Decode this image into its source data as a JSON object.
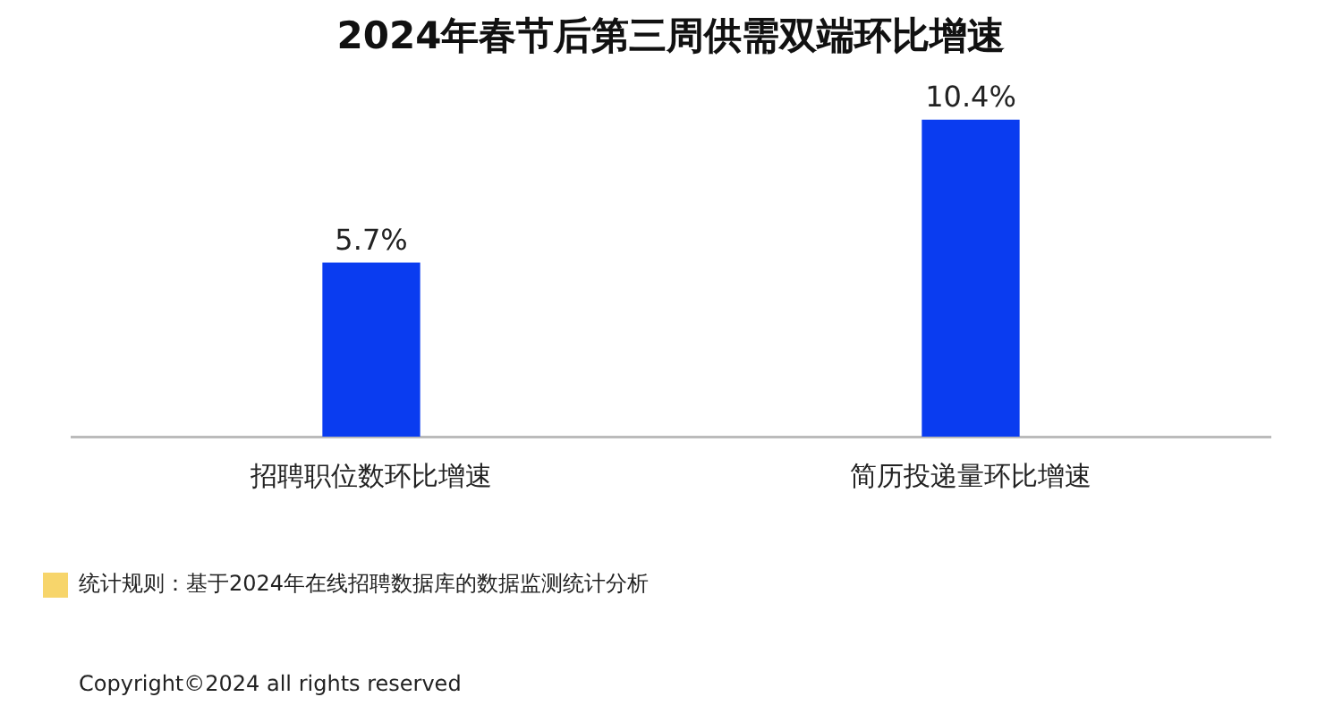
{
  "chart_data": {
    "type": "bar",
    "title": "2024年春节后第三周供需双端环比增速",
    "categories": [
      "招聘职位数环比增速",
      "简历投递量环比增速"
    ],
    "series": [
      {
        "color": "#0a3cf0",
        "values": [
          5.7,
          10.4
        ],
        "value_labels": [
          "5.7%",
          "10.4%"
        ]
      }
    ],
    "grid": false,
    "legend": false,
    "tick_labels": "x",
    "annotations": [
      "统计规则：基于2024年在线招聘数据库的数据监测统计分析",
      "Copyright©2024 all rights reserved"
    ]
  }
}
